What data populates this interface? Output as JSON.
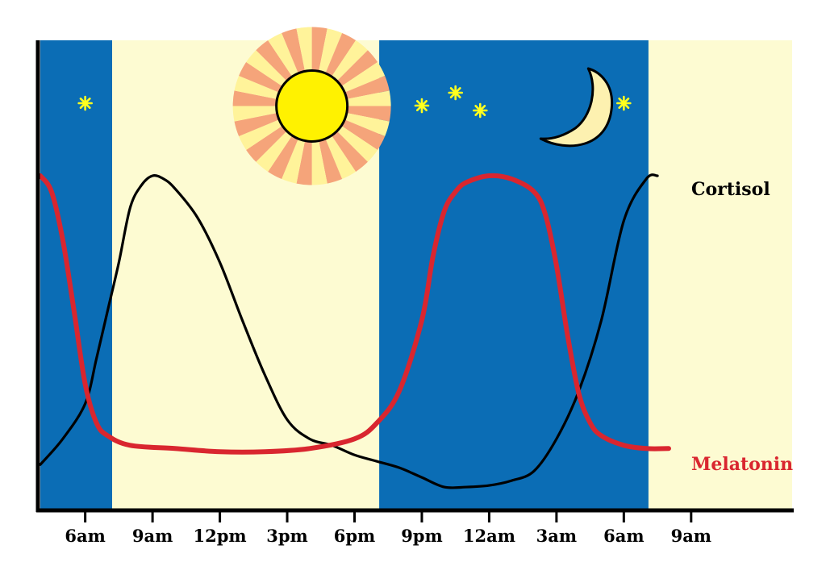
{
  "chart_data": {
    "type": "line",
    "title": "",
    "xlabel": "",
    "ylabel": "",
    "x_unit": "hours since midnight (day 1); day 2 continues past 24",
    "xlim": [
      4,
      37.5
    ],
    "ylim": [
      0,
      100
    ],
    "x_ticks": [
      {
        "x": 6,
        "label": "6am"
      },
      {
        "x": 9,
        "label": "9am"
      },
      {
        "x": 12,
        "label": "12pm"
      },
      {
        "x": 15,
        "label": "3pm"
      },
      {
        "x": 18,
        "label": "6pm"
      },
      {
        "x": 21,
        "label": "9pm"
      },
      {
        "x": 24,
        "label": "12am"
      },
      {
        "x": 27,
        "label": "3am"
      },
      {
        "x": 30,
        "label": "6am"
      },
      {
        "x": 33,
        "label": "9am"
      }
    ],
    "bands": [
      {
        "from": 4,
        "to": 7.2,
        "kind": "night",
        "color": "#0b6db5"
      },
      {
        "from": 7.2,
        "to": 19.1,
        "kind": "day",
        "color": "#fdfbd2"
      },
      {
        "from": 19.1,
        "to": 31.1,
        "kind": "night",
        "color": "#0b6db5"
      },
      {
        "from": 31.1,
        "to": 37.5,
        "kind": "day",
        "color": "#fdfbd2"
      }
    ],
    "series": [
      {
        "name": "Cortisol",
        "color": "#000000",
        "label_color": "#000000",
        "x": [
          4,
          5,
          6,
          6.5,
          7,
          7.5,
          8,
          8.5,
          9,
          9.5,
          10,
          11,
          12,
          13,
          14,
          15,
          16,
          17,
          18,
          19,
          20,
          21,
          22,
          23,
          24,
          25,
          26,
          27,
          28,
          29,
          30,
          31,
          31.5
        ],
        "y": [
          10,
          18,
          29,
          43,
          58,
          73,
          90,
          97,
          100,
          99,
          96,
          87,
          73,
          55,
          38,
          24,
          18,
          16,
          13,
          11,
          9,
          6,
          3,
          3,
          3.5,
          5,
          8,
          18,
          33,
          55,
          86,
          99,
          100
        ]
      },
      {
        "name": "Melatonin",
        "color": "#d9262f",
        "label_color": "#d9262f",
        "x": [
          4,
          4.5,
          5,
          5.5,
          6,
          6.5,
          7,
          8,
          10,
          12,
          14,
          16,
          18,
          19,
          20,
          21,
          21.5,
          22,
          22.5,
          23,
          24,
          25,
          26,
          26.5,
          27,
          27.5,
          28,
          28.5,
          29,
          30,
          31,
          32
        ],
        "y": [
          100,
          95,
          80,
          58,
          35,
          23,
          19,
          16,
          15,
          14,
          14,
          15,
          18,
          23,
          33,
          55,
          75,
          89,
          95,
          98,
          100,
          99,
          95,
          88,
          72,
          50,
          32,
          23,
          19,
          16,
          15,
          15
        ]
      }
    ],
    "decorations": {
      "sun": {
        "x": 16.1,
        "y": 131.5,
        "core_color": "#fff200",
        "ray_colors": [
          "#f5a47a",
          "#fff39a"
        ]
      },
      "moon": {
        "x": 28.2,
        "y": 129,
        "color": "#fdf1b0"
      },
      "stars": [
        {
          "x": 6.0,
          "y": 128
        },
        {
          "x": 21.0,
          "y": 131
        },
        {
          "x": 22.5,
          "y": 115
        },
        {
          "x": 23.6,
          "y": 137
        },
        {
          "x": 30.0,
          "y": 128
        }
      ],
      "star_color": "#ffff1e"
    }
  }
}
